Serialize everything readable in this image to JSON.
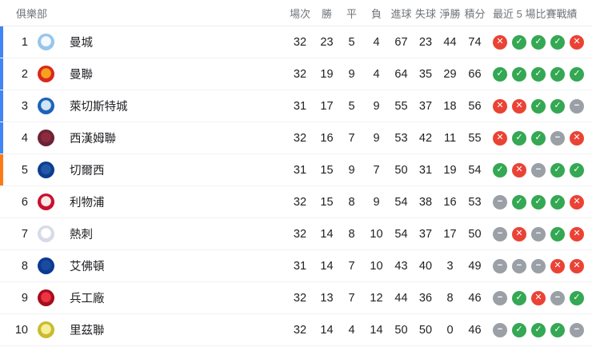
{
  "header": {
    "club": "俱樂部",
    "stat_cols": [
      "場次",
      "勝",
      "平",
      "負",
      "進球",
      "失球",
      "淨勝",
      "積分"
    ],
    "form": "最近 5 場比賽戰績"
  },
  "colors": {
    "win": "#34a853",
    "loss": "#ea4335",
    "draw": "#9aa0a6",
    "champions_league_bar": "#4285f4",
    "europa_league_bar": "#fa7b17",
    "header_text": "#70757a",
    "row_separator": "#f1f1f1"
  },
  "form_glyphs": {
    "W": "✓",
    "L": "✕",
    "D": "−"
  },
  "form_names": {
    "W": "win-icon",
    "L": "loss-icon",
    "D": "draw-icon"
  },
  "teams": [
    {
      "rank": 1,
      "name": "曼城",
      "bar": "champions_league_bar",
      "badge_inner": "#f4f9fd",
      "badge_ring": "#98c5e9",
      "played": 32,
      "won": 23,
      "drawn": 5,
      "lost": 4,
      "goals_for": 67,
      "goals_against": 23,
      "goal_diff": 44,
      "points": 74,
      "form": [
        "L",
        "W",
        "W",
        "W",
        "L"
      ]
    },
    {
      "rank": 2,
      "name": "曼聯",
      "bar": "champions_league_bar",
      "badge_inner": "#f6a21d",
      "badge_ring": "#da291c",
      "played": 32,
      "won": 19,
      "drawn": 9,
      "lost": 4,
      "goals_for": 64,
      "goals_against": 35,
      "goal_diff": 29,
      "points": 66,
      "form": [
        "W",
        "W",
        "W",
        "W",
        "W"
      ]
    },
    {
      "rank": 3,
      "name": "萊切斯特城",
      "bar": "champions_league_bar",
      "badge_inner": "#cfe6f7",
      "badge_ring": "#1d64b8",
      "played": 31,
      "won": 17,
      "drawn": 5,
      "lost": 9,
      "goals_for": 55,
      "goals_against": 37,
      "goal_diff": 18,
      "points": 56,
      "form": [
        "L",
        "L",
        "W",
        "W",
        "D"
      ]
    },
    {
      "rank": 4,
      "name": "西漢姆聯",
      "bar": "champions_league_bar",
      "badge_inner": "#8c2b3f",
      "badge_ring": "#6b2335",
      "played": 32,
      "won": 16,
      "drawn": 7,
      "lost": 9,
      "goals_for": 53,
      "goals_against": 42,
      "goal_diff": 11,
      "points": 55,
      "form": [
        "L",
        "W",
        "W",
        "D",
        "L"
      ]
    },
    {
      "rank": 5,
      "name": "切爾西",
      "bar": "europa_league_bar",
      "badge_inner": "#2357a8",
      "badge_ring": "#0b3e8f",
      "played": 31,
      "won": 15,
      "drawn": 9,
      "lost": 7,
      "goals_for": 50,
      "goals_against": 31,
      "goal_diff": 19,
      "points": 54,
      "form": [
        "W",
        "L",
        "D",
        "W",
        "W"
      ]
    },
    {
      "rank": 6,
      "name": "利物浦",
      "bar": null,
      "badge_inner": "#fbe9e9",
      "badge_ring": "#c8102e",
      "played": 32,
      "won": 15,
      "drawn": 8,
      "lost": 9,
      "goals_for": 54,
      "goals_against": 38,
      "goal_diff": 16,
      "points": 53,
      "form": [
        "D",
        "W",
        "W",
        "W",
        "L"
      ]
    },
    {
      "rank": 7,
      "name": "熱刺",
      "bar": null,
      "badge_inner": "#ffffff",
      "badge_ring": "#d7dbe8",
      "played": 32,
      "won": 14,
      "drawn": 8,
      "lost": 10,
      "goals_for": 54,
      "goals_against": 37,
      "goal_diff": 17,
      "points": 50,
      "form": [
        "D",
        "L",
        "D",
        "W",
        "L"
      ]
    },
    {
      "rank": 8,
      "name": "艾佛頓",
      "bar": null,
      "badge_inner": "#1c4aa0",
      "badge_ring": "#0b3a91",
      "played": 31,
      "won": 14,
      "drawn": 7,
      "lost": 10,
      "goals_for": 43,
      "goals_against": 40,
      "goal_diff": 3,
      "points": 49,
      "form": [
        "D",
        "D",
        "D",
        "L",
        "L"
      ]
    },
    {
      "rank": 9,
      "name": "兵工廠",
      "bar": null,
      "badge_inner": "#ef3340",
      "badge_ring": "#a50e1f",
      "played": 32,
      "won": 13,
      "drawn": 7,
      "lost": 12,
      "goals_for": 44,
      "goals_against": 36,
      "goal_diff": 8,
      "points": 46,
      "form": [
        "D",
        "W",
        "L",
        "D",
        "W"
      ]
    },
    {
      "rank": 10,
      "name": "里茲聯",
      "bar": null,
      "badge_inner": "#f5ef9a",
      "badge_ring": "#c9bb2e",
      "played": 32,
      "won": 14,
      "drawn": 4,
      "lost": 14,
      "goals_for": 50,
      "goals_against": 50,
      "goal_diff": 0,
      "points": 46,
      "form": [
        "D",
        "W",
        "W",
        "W",
        "D"
      ]
    }
  ]
}
